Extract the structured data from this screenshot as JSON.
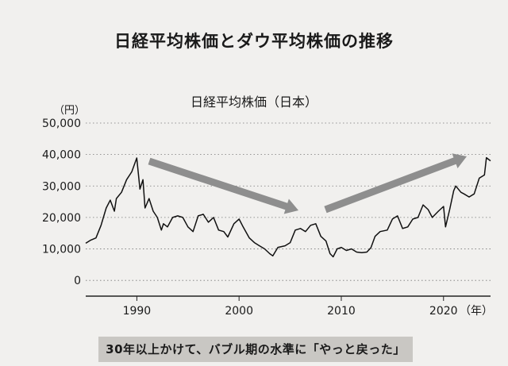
{
  "header": {
    "title": "日経平均株価とダウ平均株価の推移"
  },
  "footer": {
    "caption": "30年以上かけて、バブル期の水準に「やっと戻った」"
  },
  "chart_data": {
    "type": "line",
    "title": "日経平均株価（日本）",
    "ylabel": "（円）",
    "xlabel": "",
    "x_unit_label": "（年）",
    "xlim": [
      1985,
      2024.6
    ],
    "ylim": [
      -5000,
      50000
    ],
    "yticks": [
      0,
      10000,
      20000,
      30000,
      40000,
      50000
    ],
    "yticklabels": [
      "0",
      "10,000",
      "20,000",
      "30,000",
      "40,000",
      "50,000"
    ],
    "xticks": [
      1990,
      2000,
      2010,
      2020
    ],
    "xticklabels": [
      "1990",
      "2000",
      "2010",
      "2020"
    ],
    "grid": "horizontal-dotted",
    "line_color": "#111111",
    "arrow_color": "#8e8e8e",
    "series": [
      {
        "name": "",
        "x": [
          1985.0,
          1985.5,
          1986.0,
          1986.5,
          1987.0,
          1987.4,
          1987.8,
          1988.0,
          1988.5,
          1989.0,
          1989.5,
          1989.99,
          1990.3,
          1990.6,
          1990.8,
          1991.2,
          1991.6,
          1992.0,
          1992.4,
          1992.6,
          1993.0,
          1993.5,
          1994.0,
          1994.5,
          1995.0,
          1995.5,
          1996.0,
          1996.5,
          1997.0,
          1997.5,
          1998.0,
          1998.5,
          1998.9,
          1999.5,
          2000.0,
          2000.4,
          2001.0,
          2001.5,
          2002.0,
          2002.5,
          2003.0,
          2003.3,
          2003.8,
          2004.5,
          2005.0,
          2005.5,
          2006.0,
          2006.5,
          2007.0,
          2007.5,
          2008.0,
          2008.5,
          2008.9,
          2009.2,
          2009.6,
          2010.0,
          2010.5,
          2011.0,
          2011.5,
          2012.0,
          2012.5,
          2012.9,
          2013.3,
          2013.8,
          2014.5,
          2015.0,
          2015.5,
          2016.0,
          2016.5,
          2017.0,
          2017.5,
          2018.0,
          2018.5,
          2018.9,
          2019.5,
          2020.0,
          2020.2,
          2020.6,
          2021.0,
          2021.2,
          2021.7,
          2022.0,
          2022.5,
          2023.0,
          2023.5,
          2024.0,
          2024.2,
          2024.6
        ],
        "values": [
          11800,
          12800,
          13500,
          17500,
          23000,
          25500,
          22000,
          26000,
          28000,
          32000,
          34500,
          38900,
          29000,
          32000,
          23000,
          26000,
          22000,
          20000,
          16000,
          18000,
          17000,
          20000,
          20500,
          20000,
          17000,
          15500,
          20500,
          21000,
          18500,
          20000,
          16000,
          15500,
          13800,
          18000,
          19500,
          17000,
          13500,
          12000,
          11000,
          10000,
          8500,
          7800,
          10500,
          11000,
          12000,
          16000,
          16500,
          15500,
          17500,
          18000,
          14000,
          12500,
          8500,
          7500,
          10000,
          10500,
          9500,
          10000,
          9000,
          8800,
          9000,
          10400,
          14000,
          15500,
          16000,
          19500,
          20500,
          16500,
          17000,
          19500,
          20000,
          24000,
          22500,
          20000,
          22000,
          23500,
          17000,
          22500,
          28500,
          30000,
          28000,
          27500,
          26500,
          27500,
          32500,
          33500,
          39000,
          38000
        ]
      }
    ],
    "annotations": [
      "down-arrow 1991-2006",
      "up-arrow 2008-2022"
    ]
  }
}
